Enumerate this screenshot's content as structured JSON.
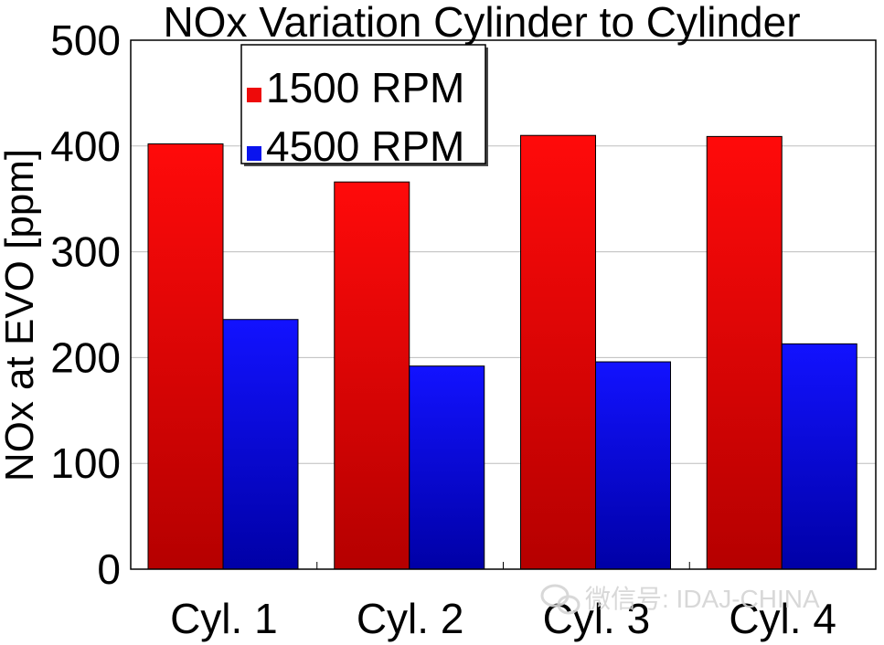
{
  "chart_data": {
    "type": "bar",
    "title": "NOx Variation Cylinder to Cylinder",
    "xlabel": "",
    "ylabel": "NOx at EVO [ppm]",
    "categories": [
      "Cyl. 1",
      "Cyl. 2",
      "Cyl. 3",
      "Cyl. 4"
    ],
    "series": [
      {
        "name": "1500 RPM",
        "values": [
          402,
          366,
          410,
          409
        ]
      },
      {
        "name": "4500 RPM",
        "values": [
          236,
          192,
          196,
          213
        ]
      }
    ],
    "ylim": [
      0,
      500
    ],
    "yticks": [
      0,
      100,
      200,
      300,
      400,
      500
    ],
    "grid": true,
    "legend_position": "top-left"
  },
  "colors": {
    "series_1500": "#ee0a0a",
    "series_4500": "#0a14ee"
  },
  "watermark": {
    "text": "微信号: IDAJ-CHINA",
    "icon": "wechat-icon"
  }
}
